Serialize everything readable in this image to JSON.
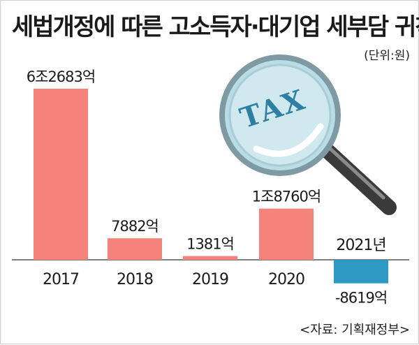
{
  "header": {
    "title": "세법개정에 따른 고소득자·대기업 세부담 귀착",
    "unit": "(단위:원)"
  },
  "footer": {
    "source": "<자료: 기획재정부>"
  },
  "decoration": {
    "magnifier_text": "TAX"
  },
  "colors": {
    "positive_bar": "#f4837b",
    "negative_bar": "#2e9ac4",
    "baseline": "#555555",
    "text": "#1a1a1a"
  },
  "chart_data": {
    "type": "bar",
    "title": "세법개정에 따른 고소득자·대기업 세부담 귀착",
    "unit": "(단위:원)",
    "categories": [
      "2017",
      "2018",
      "2019",
      "2020",
      "2021년"
    ],
    "values": [
      62683,
      7882,
      1381,
      18760,
      -8619
    ],
    "value_unit": "억원",
    "value_labels": [
      "6조2683억",
      "7882억",
      "1381억",
      "1조8760억",
      "-8619억"
    ],
    "ylim": [
      -8619,
      62683
    ],
    "grid": false,
    "legend": "none"
  }
}
